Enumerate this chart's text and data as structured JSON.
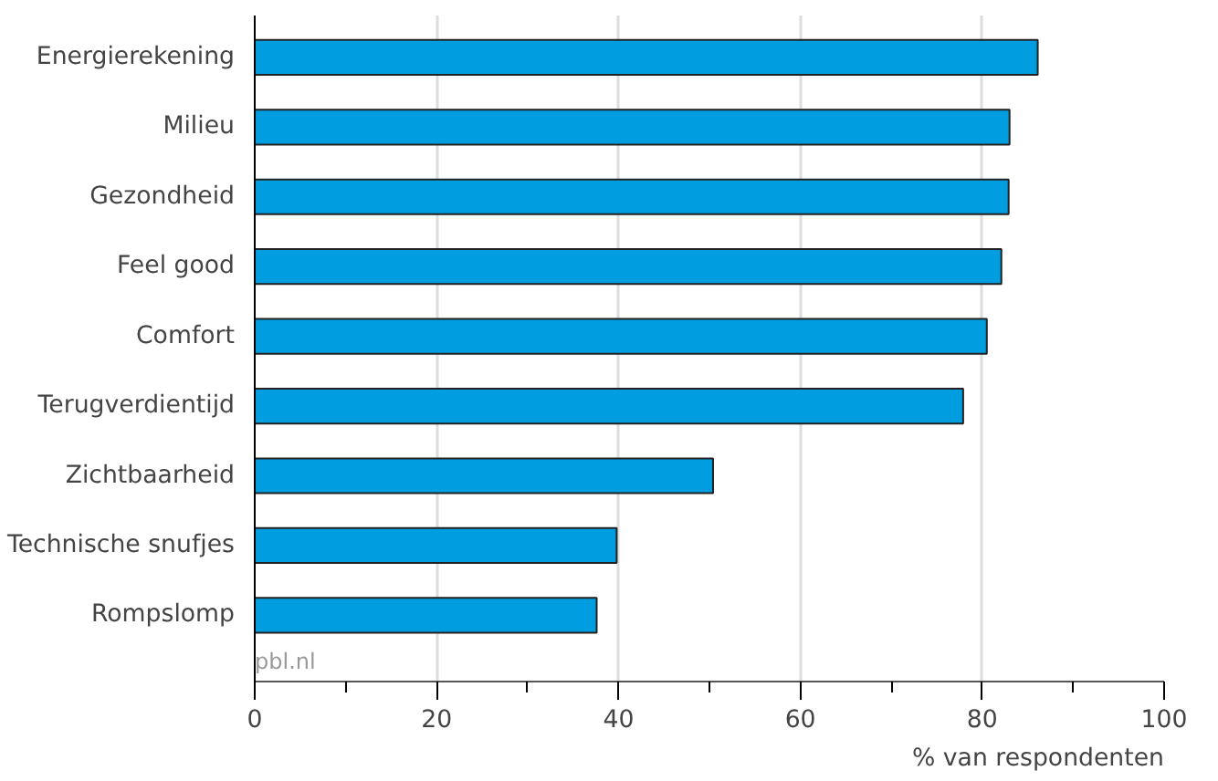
{
  "chart_data": {
    "type": "bar",
    "orientation": "horizontal",
    "xlabel": "% van respondenten",
    "categories": [
      "Energierekening",
      "Milieu",
      "Gezondheid",
      "Feel good",
      "Comfort",
      "Terugverdientijd",
      "Zichtbaarheid",
      "Technische snufjes",
      "Rompslomp"
    ],
    "values": [
      86.1,
      83.0,
      82.9,
      82.1,
      80.5,
      77.9,
      50.4,
      39.8,
      37.6
    ],
    "color": "#009de0",
    "xlim": [
      0,
      100
    ],
    "xticks": [
      0,
      {
        "value": 10,
        "label": null
      },
      20,
      {
        "value": 30,
        "label": null
      },
      40,
      {
        "value": 50,
        "label": null
      },
      60,
      {
        "value": 70,
        "label": null
      },
      80,
      {
        "value": 90,
        "label": null
      },
      100
    ],
    "grid": "x",
    "annotations": [
      "pbl.nl"
    ]
  }
}
